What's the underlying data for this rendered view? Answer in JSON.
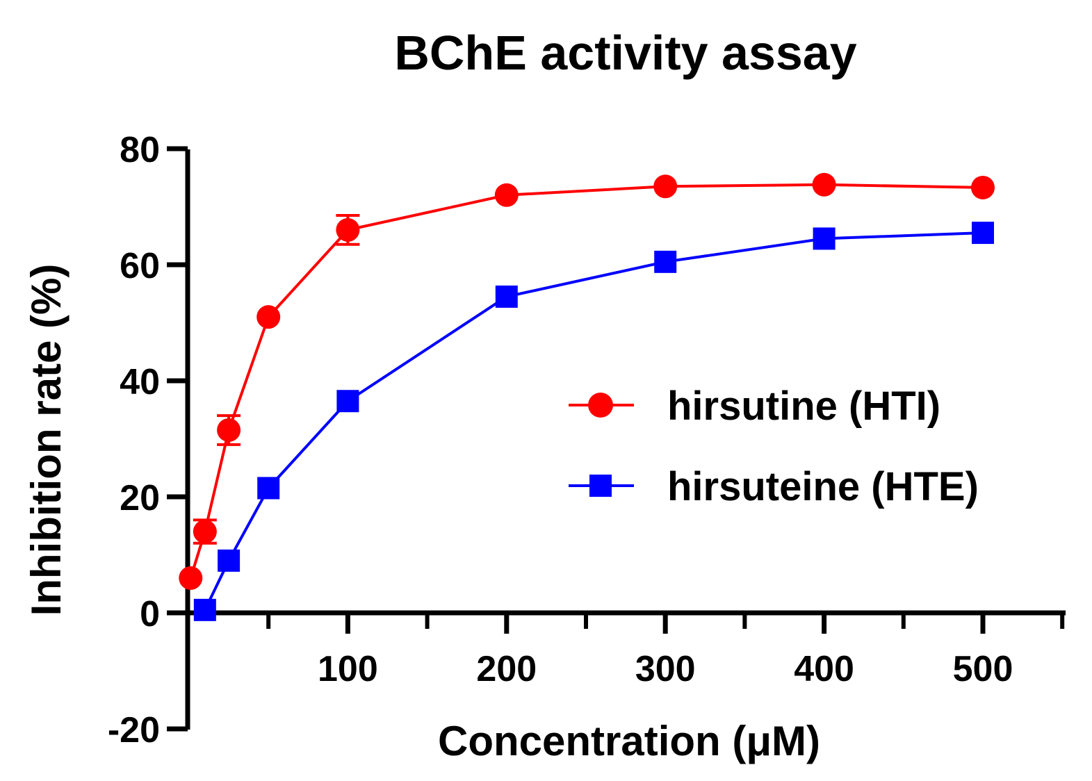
{
  "chart_data": {
    "type": "line",
    "title": "BChE activity assay",
    "xlabel": "Concentration (μM)",
    "ylabel": "Inhibition rate (%)",
    "xlim": [
      -5,
      550
    ],
    "ylim": [
      -20,
      80
    ],
    "x_ticks": [
      100,
      200,
      300,
      400,
      500
    ],
    "x_minor_ticks": [
      50,
      150,
      250,
      350,
      450,
      550
    ],
    "x_tick_labels": [
      "100",
      "200",
      "300",
      "400",
      "500"
    ],
    "y_ticks": [
      -20,
      0,
      20,
      40,
      60,
      80
    ],
    "y_tick_labels": [
      "-20",
      "0",
      "20",
      "40",
      "60",
      "80"
    ],
    "grid": false,
    "legend_position": "right",
    "series": [
      {
        "name": "hirsutine (HTI)",
        "color": "#ff0000",
        "marker": "circle",
        "x": [
          1,
          10,
          25,
          50,
          100,
          200,
          300,
          400,
          500
        ],
        "y": [
          6,
          14,
          31.5,
          51,
          66,
          72,
          73.5,
          73.8,
          73.3
        ],
        "error": [
          0,
          2,
          2.5,
          0,
          2.5,
          0,
          0,
          0,
          0
        ]
      },
      {
        "name": "hirsuteine (HTE)",
        "color": "#0000ff",
        "marker": "square",
        "x": [
          10,
          25,
          50,
          100,
          200,
          300,
          400,
          500
        ],
        "y": [
          0.5,
          9,
          21.5,
          36.5,
          54.5,
          60.5,
          64.5,
          65.5
        ],
        "error": [
          0,
          0,
          0,
          0,
          0,
          0,
          0,
          0
        ]
      }
    ]
  }
}
